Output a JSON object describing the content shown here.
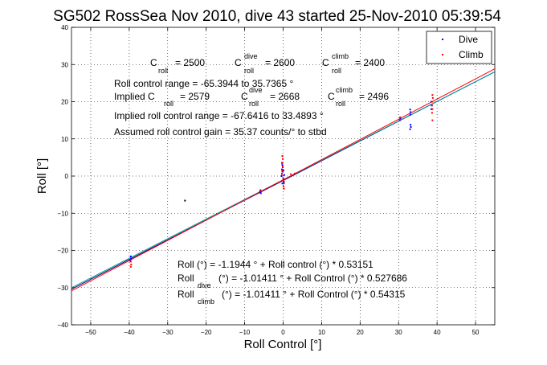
{
  "chart_data": {
    "type": "scatter",
    "title": "SG502 RossSea Nov 2010, dive 43 started 25-Nov-2010 05:39:54",
    "xlabel": "Roll Control [°]",
    "ylabel": "Roll [°]",
    "xlim": [
      -55,
      55
    ],
    "ylim": [
      -40,
      40
    ],
    "xticks": [
      -50,
      -40,
      -30,
      -20,
      -10,
      0,
      10,
      20,
      30,
      40,
      50
    ],
    "yticks": [
      -40,
      -30,
      -20,
      -10,
      0,
      10,
      20,
      30,
      40
    ],
    "grid": true,
    "legend_position": "top-right",
    "colors": {
      "dive": "#0000ff",
      "climb": "#ff0000",
      "fit_all": "#000080",
      "fit_dive": "#00a0a0",
      "fit_climb": "#ff0000",
      "axis": "#000000"
    },
    "series": [
      {
        "name": "Dive",
        "color": "#0000ff",
        "points": [
          [
            -39.6,
            -21.6
          ],
          [
            -39.5,
            -22.2
          ],
          [
            -39.7,
            -22.8
          ],
          [
            -6.0,
            -4.2
          ],
          [
            -5.8,
            -4.6
          ],
          [
            -5.9,
            -3.8
          ],
          [
            -0.4,
            0.0
          ],
          [
            -0.3,
            0.6
          ],
          [
            -0.2,
            1.2
          ],
          [
            -0.3,
            1.8
          ],
          [
            -0.1,
            2.4
          ],
          [
            -0.2,
            3.0
          ],
          [
            -0.3,
            3.5
          ],
          [
            0.0,
            -0.6
          ],
          [
            0.1,
            -1.1
          ],
          [
            0.2,
            -1.6
          ],
          [
            -0.2,
            -2.0
          ],
          [
            0.3,
            0.3
          ],
          [
            0.1,
            1.5
          ],
          [
            30.3,
            15.0
          ],
          [
            30.5,
            15.5
          ],
          [
            33.0,
            16.5
          ],
          [
            33.1,
            17.2
          ],
          [
            33.0,
            17.9
          ],
          [
            33.2,
            13.2
          ],
          [
            33.1,
            13.8
          ],
          [
            33.0,
            12.6
          ],
          [
            38.5,
            18.0
          ],
          [
            38.6,
            19.0
          ],
          [
            38.5,
            20.0
          ]
        ]
      },
      {
        "name": "Climb",
        "color": "#ff0000",
        "points": [
          [
            -39.6,
            -23.0
          ],
          [
            -39.5,
            -23.8
          ],
          [
            -39.6,
            -24.4
          ],
          [
            -5.9,
            -4.0
          ],
          [
            -0.3,
            0.5
          ],
          [
            -0.2,
            1.5
          ],
          [
            -0.1,
            2.6
          ],
          [
            -0.2,
            3.6
          ],
          [
            -0.1,
            4.6
          ],
          [
            -0.2,
            5.4
          ],
          [
            0.0,
            -0.5
          ],
          [
            0.1,
            -1.2
          ],
          [
            0.2,
            -2.0
          ],
          [
            0.1,
            -2.8
          ],
          [
            0.2,
            -3.4
          ],
          [
            2.0,
            0.5
          ],
          [
            3.0,
            0.7
          ],
          [
            30.3,
            15.2
          ],
          [
            30.4,
            15.8
          ],
          [
            38.7,
            17.0
          ],
          [
            38.8,
            18.0
          ],
          [
            38.7,
            19.0
          ],
          [
            38.8,
            20.0
          ],
          [
            38.9,
            21.0
          ],
          [
            38.8,
            21.8
          ],
          [
            38.8,
            15.0
          ]
        ]
      },
      {
        "name": "",
        "color": "#000000",
        "points": [
          [
            -25.5,
            -6.6
          ]
        ]
      }
    ],
    "fit_lines": [
      {
        "label": "Roll (°) = -1.1944 ° + Roll control (°) * 0.53151",
        "intercept": -1.1944,
        "slope": 0.53151,
        "color": "#000080"
      },
      {
        "label": "Roll dive (°) = -1.01411 ° + Roll Control (°) * 0.527686",
        "intercept": -1.01411,
        "slope": 0.527686,
        "color": "#00a0a0"
      },
      {
        "label": "Roll climb (°) = -1.01411 ° + Roll Control (°) * 0.54315",
        "intercept": -1.01411,
        "slope": 0.54315,
        "color": "#ff0000"
      }
    ],
    "annotations": {
      "c_roll": {
        "C": "C",
        "roll": "roll",
        "val": "= 2500",
        "dive_sup": "dive",
        "dive_val": "= 2600",
        "climb_sup": "climb",
        "climb_val": "= 2400"
      },
      "range": "Roll control range = -65.3944 to 35.7365 °",
      "implied": {
        "text": "Implied C",
        "val": "= 2579",
        "dive_val": "= 2668",
        "climb_val": "= 2496"
      },
      "implied_range": "Implied roll control range = -67.6416 to 33.4893 °",
      "gain": "Assumed roll control gain = 35.37 counts/° to stbd",
      "eq1": "Roll (°) = -1.1944 ° + Roll control (°) * 0.53151",
      "eq2_a": "Roll",
      "eq2_sub": "dive",
      "eq2_b": "(°) = -1.01411 ° + Roll Control (°) * 0.527686",
      "eq3_a": "Roll",
      "eq3_sub": "climb",
      "eq3_b": "(°) = -1.01411 ° + Roll Control (°) * 0.54315"
    }
  }
}
